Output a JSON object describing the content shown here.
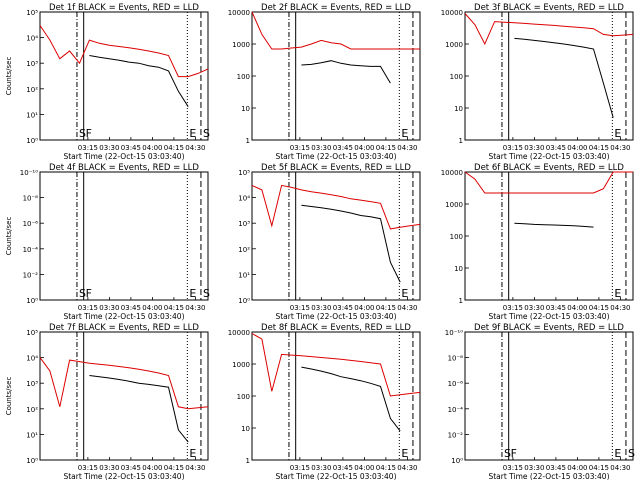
{
  "chart_data": [
    {
      "type": "line",
      "title": "Det 1f BLACK = Events, RED = LLD",
      "xlabel": "Start Time (22-Oct-15 03:03:40)",
      "ylabel": "Counts/sec",
      "y_log": true,
      "ylim": [
        1,
        100000
      ],
      "y_ticks": [
        "10⁰",
        "10¹",
        "10²",
        "10³",
        "10⁴",
        "10⁵"
      ],
      "x_ticks": [
        "03:15",
        "03:30",
        "03:45",
        "04:00",
        "04:15",
        "04:30"
      ],
      "markers": [
        {
          "label": "S",
          "style": "dash-dot"
        },
        {
          "label": "F",
          "style": "solid"
        },
        {
          "label": "E",
          "style": "dotted"
        },
        {
          "label": "S",
          "style": "dashed"
        }
      ],
      "series": [
        {
          "color": "#dd0000",
          "values": [
            30000,
            8000,
            1500,
            3000,
            1000,
            8000,
            6000,
            5000,
            4500,
            4000,
            3500,
            3000,
            2500,
            2000,
            300,
            300,
            400,
            600
          ]
        },
        {
          "color": "#000000",
          "values": [
            null,
            null,
            null,
            null,
            null,
            2000,
            1700,
            1500,
            1300,
            1100,
            1000,
            800,
            700,
            500,
            80,
            20,
            null,
            null
          ]
        }
      ]
    },
    {
      "type": "line",
      "title": "Det 2f BLACK = Events, RED = LLD",
      "xlabel": "Start Time (22-Oct-15 03:03:40)",
      "ylabel": "",
      "y_log": true,
      "ylim": [
        1,
        10000
      ],
      "y_ticks": [
        "1",
        "10",
        "100",
        "1000",
        "10000"
      ],
      "x_ticks": [
        "03:15",
        "03:30",
        "03:45",
        "04:00",
        "04:15",
        "04:30"
      ],
      "markers": [
        {
          "label": "",
          "style": "dash-dot"
        },
        {
          "label": "",
          "style": "solid"
        },
        {
          "label": "E",
          "style": "dotted"
        },
        {
          "label": "",
          "style": "dashed"
        }
      ],
      "series": [
        {
          "color": "#dd0000",
          "values": [
            10000,
            2000,
            700,
            700,
            750,
            800,
            1000,
            1300,
            1100,
            1000,
            700,
            700,
            700,
            700,
            700,
            700,
            700,
            700
          ]
        },
        {
          "color": "#000000",
          "values": [
            null,
            null,
            null,
            null,
            null,
            220,
            230,
            260,
            300,
            250,
            220,
            210,
            200,
            200,
            60,
            null,
            null,
            null
          ]
        }
      ]
    },
    {
      "type": "line",
      "title": "Det 3f BLACK = Events, RED = LLD",
      "xlabel": "Start Time (22-Oct-15 03:03:40)",
      "ylabel": "",
      "y_log": true,
      "ylim": [
        1,
        10000
      ],
      "y_ticks": [
        "1",
        "10",
        "100",
        "1000",
        "10000"
      ],
      "x_ticks": [
        "03:15",
        "03:30",
        "03:45",
        "04:00",
        "04:15",
        "04:30"
      ],
      "markers": [
        {
          "label": "",
          "style": "dash-dot"
        },
        {
          "label": "",
          "style": "solid"
        },
        {
          "label": "E",
          "style": "dotted"
        },
        {
          "label": "",
          "style": "dashed"
        }
      ],
      "series": [
        {
          "color": "#dd0000",
          "values": [
            9000,
            4000,
            1000,
            5000,
            4800,
            4600,
            4400,
            4200,
            4000,
            3800,
            3600,
            3400,
            3200,
            3000,
            2000,
            1800,
            1900,
            2000
          ]
        },
        {
          "color": "#000000",
          "values": [
            null,
            null,
            null,
            null,
            null,
            1500,
            1400,
            1300,
            1200,
            1100,
            1000,
            900,
            800,
            700,
            60,
            5,
            null,
            null
          ]
        }
      ]
    },
    {
      "type": "line",
      "title": "Det 4f BLACK = Events, RED = LLD",
      "xlabel": "Start Time (22-Oct-15 03:03:40)",
      "ylabel": "Counts/sec",
      "y_log": true,
      "ylim": [
        1,
        1e-10
      ],
      "y_ticks": [
        "10⁰",
        "10⁻²",
        "10⁻⁴",
        "10⁻⁶",
        "10⁻⁸",
        "10⁻¹⁰"
      ],
      "x_ticks": [
        "03:15",
        "03:30",
        "03:45",
        "04:00",
        "04:15",
        "04:30"
      ],
      "markers": [
        {
          "label": "S",
          "style": "dash-dot"
        },
        {
          "label": "F",
          "style": "solid"
        },
        {
          "label": "E",
          "style": "dotted"
        },
        {
          "label": "S",
          "style": "dashed"
        }
      ],
      "series": []
    },
    {
      "type": "line",
      "title": "Det 5f BLACK = Events, RED = LLD",
      "xlabel": "Start Time (22-Oct-15 03:03:40)",
      "ylabel": "",
      "y_log": true,
      "ylim": [
        1,
        100000
      ],
      "y_ticks": [
        "10⁰",
        "10¹",
        "10²",
        "10³",
        "10⁴",
        "10⁵"
      ],
      "x_ticks": [
        "03:15",
        "03:30",
        "03:45",
        "04:00",
        "04:15",
        "04:30"
      ],
      "markers": [
        {
          "label": "",
          "style": "dash-dot"
        },
        {
          "label": "",
          "style": "solid"
        },
        {
          "label": "E",
          "style": "dotted"
        },
        {
          "label": "",
          "style": "dashed"
        }
      ],
      "series": [
        {
          "color": "#dd0000",
          "values": [
            30000,
            20000,
            800,
            30000,
            25000,
            20000,
            17000,
            15000,
            13000,
            11000,
            9000,
            8000,
            7000,
            6000,
            600,
            700,
            800,
            900
          ]
        },
        {
          "color": "#000000",
          "values": [
            null,
            null,
            null,
            null,
            null,
            5000,
            4500,
            4000,
            3500,
            3000,
            2500,
            2000,
            1800,
            1500,
            30,
            5,
            null,
            null
          ]
        }
      ]
    },
    {
      "type": "line",
      "title": "Det 6f BLACK = Events, RED = LLD",
      "xlabel": "Start Time (22-Oct-15 03:03:40)",
      "ylabel": "",
      "y_log": true,
      "ylim": [
        1,
        10000
      ],
      "y_ticks": [
        "1",
        "10",
        "100",
        "1000",
        "10000"
      ],
      "x_ticks": [
        "03:15",
        "03:30",
        "03:45",
        "04:00",
        "04:15",
        "04:30"
      ],
      "markers": [
        {
          "label": "",
          "style": "dash-dot"
        },
        {
          "label": "",
          "style": "solid"
        },
        {
          "label": "E",
          "style": "dotted"
        },
        {
          "label": "",
          "style": "dashed"
        }
      ],
      "series": [
        {
          "color": "#dd0000",
          "values": [
            10000,
            6000,
            2200,
            2200,
            2200,
            2200,
            2200,
            2200,
            2200,
            2200,
            2200,
            2200,
            2200,
            2200,
            3000,
            10000,
            10000,
            10000
          ]
        },
        {
          "color": "#000000",
          "values": [
            null,
            null,
            null,
            null,
            null,
            250,
            240,
            230,
            225,
            220,
            215,
            210,
            200,
            190,
            null,
            null,
            null,
            null
          ]
        }
      ]
    },
    {
      "type": "line",
      "title": "Det 7f BLACK = Events, RED = LLD",
      "xlabel": "Start Time (22-Oct-15 03:03:40)",
      "ylabel": "Counts/sec",
      "y_log": true,
      "ylim": [
        1,
        100000
      ],
      "y_ticks": [
        "10⁰",
        "10¹",
        "10²",
        "10³",
        "10⁴",
        "10⁵"
      ],
      "x_ticks": [
        "03:15",
        "03:30",
        "03:45",
        "04:00",
        "04:15",
        "04:30"
      ],
      "markers": [
        {
          "label": "",
          "style": "dash-dot"
        },
        {
          "label": "",
          "style": "solid"
        },
        {
          "label": "E",
          "style": "dotted"
        },
        {
          "label": "",
          "style": "dashed"
        }
      ],
      "series": [
        {
          "color": "#dd0000",
          "values": [
            10000,
            3000,
            120,
            8000,
            7000,
            6000,
            5500,
            5000,
            4500,
            4000,
            3500,
            3000,
            2500,
            2000,
            120,
            100,
            110,
            120
          ]
        },
        {
          "color": "#000000",
          "values": [
            null,
            null,
            null,
            null,
            null,
            2000,
            1800,
            1600,
            1400,
            1200,
            1000,
            900,
            800,
            700,
            15,
            5,
            null,
            null
          ]
        }
      ]
    },
    {
      "type": "line",
      "title": "Det 8f BLACK = Events, RED = LLD",
      "xlabel": "Start Time (22-Oct-15 03:03:40)",
      "ylabel": "",
      "y_log": true,
      "ylim": [
        1,
        10000
      ],
      "y_ticks": [
        "1",
        "10",
        "100",
        "1000",
        "10000"
      ],
      "x_ticks": [
        "03:15",
        "03:30",
        "03:45",
        "04:00",
        "04:15",
        "04:30"
      ],
      "markers": [
        {
          "label": "",
          "style": "dash-dot"
        },
        {
          "label": "",
          "style": "solid"
        },
        {
          "label": "E",
          "style": "dotted"
        },
        {
          "label": "",
          "style": "dashed"
        }
      ],
      "series": [
        {
          "color": "#dd0000",
          "values": [
            9000,
            6000,
            140,
            2000,
            1900,
            1800,
            1700,
            1600,
            1500,
            1400,
            1300,
            1200,
            1100,
            1000,
            100,
            110,
            120,
            130
          ]
        },
        {
          "color": "#000000",
          "values": [
            null,
            null,
            null,
            null,
            null,
            800,
            700,
            600,
            500,
            400,
            350,
            300,
            250,
            200,
            20,
            8,
            null,
            null
          ]
        }
      ]
    },
    {
      "type": "line",
      "title": "Det 9f BLACK = Events, RED = LLD",
      "xlabel": "Start Time (22-Oct-15 03:03:40)",
      "ylabel": "",
      "y_log": true,
      "ylim": [
        1,
        1e-10
      ],
      "y_ticks": [
        "10⁰",
        "10⁻²",
        "10⁻⁴",
        "10⁻⁶",
        "10⁻⁸",
        "10⁻¹⁰"
      ],
      "x_ticks": [
        "03:15",
        "03:30",
        "03:45",
        "04:00",
        "04:15",
        "04:30"
      ],
      "markers": [
        {
          "label": "S",
          "style": "dash-dot"
        },
        {
          "label": "F",
          "style": "solid"
        },
        {
          "label": "E",
          "style": "dotted"
        },
        {
          "label": "S",
          "style": "dashed"
        }
      ],
      "series": []
    }
  ]
}
